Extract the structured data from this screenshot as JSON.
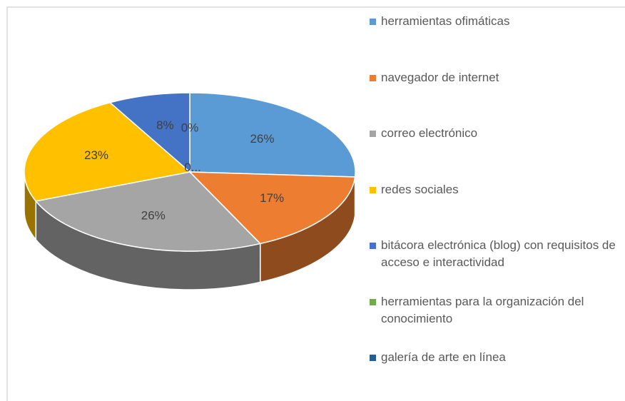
{
  "chart_data": {
    "type": "pie3d",
    "categories": [
      "herramientas ofimáticas",
      "navegador de internet",
      "correo electrónico",
      "redes sociales",
      "bitácora electrónica (blog) con requisitos  de acceso e interactividad",
      "herramientas para la organización del conocimiento",
      "galería de arte en línea"
    ],
    "values": [
      26,
      17,
      26,
      23,
      8,
      0,
      0
    ],
    "value_labels": [
      "26%",
      "17%",
      "26%",
      "23%",
      "8%",
      "0%",
      "0..."
    ],
    "colors": [
      "#5b9bd5",
      "#ed7d31",
      "#a5a5a5",
      "#ffc000",
      "#4472c4",
      "#70ad47",
      "#255e91"
    ],
    "legend": "right"
  }
}
